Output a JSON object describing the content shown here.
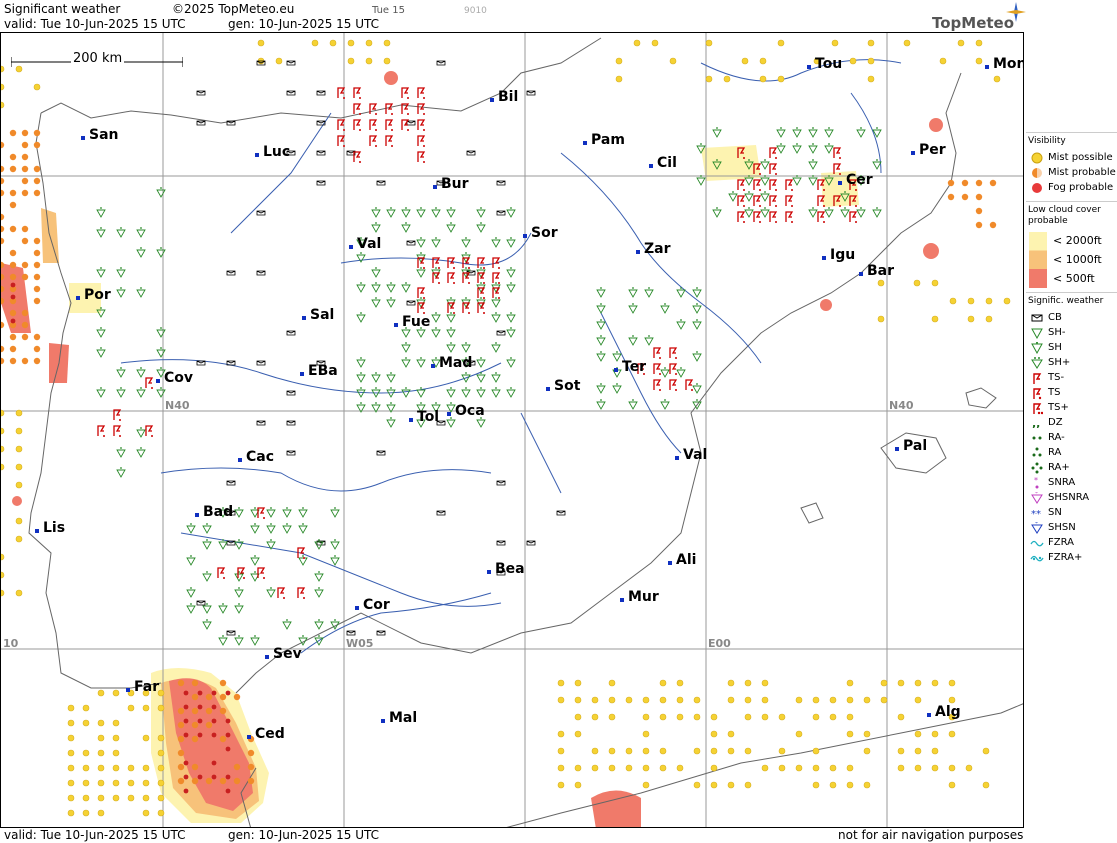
{
  "header": {
    "title": "Significant weather",
    "copyright": "©2025 TopMeteo.eu",
    "valid": "valid:  Tue  10-Jun-2025  15 UTC",
    "gen": "gen: 10-Jun-2025 15 UTC",
    "day_label": "Tue 15",
    "code": "9010",
    "logo": "TopMeteo"
  },
  "footer": {
    "valid": "valid:  Tue  10-Jun-2025  15 UTC",
    "gen": "gen: 10-Jun-2025 15 UTC",
    "disclaimer": "not for air navigation purposes"
  },
  "map": {
    "scale_label": "200 km",
    "grid_labels": {
      "n40_west": "N40",
      "n40_east": "N40",
      "w05": "W05",
      "e00": "E00",
      "w10": "10"
    },
    "cities": [
      "Tou",
      "Mon",
      "Bil",
      "Pam",
      "San",
      "Luc",
      "Per",
      "Cil",
      "Cer",
      "Bur",
      "Sor",
      "Val",
      "Zar",
      "Igu",
      "Bar",
      "Por",
      "Sal",
      "Fue",
      "Mad",
      "Cov",
      "EBa",
      "Ter",
      "Sot",
      "Tol",
      "Oca",
      "Cac",
      "Pal",
      "Val",
      "Bad",
      "Lis",
      "Bea",
      "Ali",
      "Mur",
      "Cor",
      "Sev",
      "Far",
      "Mal",
      "Ced",
      "Alg"
    ]
  },
  "legend": {
    "visibility_title": "Visibility",
    "mist_possible": "Mist possible",
    "mist_probable": "Mist probable",
    "fog_probable": "Fog probable",
    "lowcloud_title": "Low cloud cover probable",
    "lc_2000": "< 2000ft",
    "lc_1000": "< 1000ft",
    "lc_500": "<   500ft",
    "sigwx_title": "Signific. weather",
    "items": [
      "CB",
      "SH-",
      "SH",
      "SH+",
      "TS-",
      "TS",
      "TS+",
      "DZ",
      "RA-",
      "RA",
      "RA+",
      "SNRA",
      "SHSNRA",
      "SN",
      "SHSN",
      "FZRA",
      "FZRA+"
    ],
    "colors": {
      "fog": "#e83a3a",
      "mist_probable": "#f08a2a",
      "mist_possible": "#f5d233",
      "lc_light": "#fdf3b0",
      "lc_mid": "#f7c27a",
      "lc_dark": "#f07a6a"
    }
  }
}
